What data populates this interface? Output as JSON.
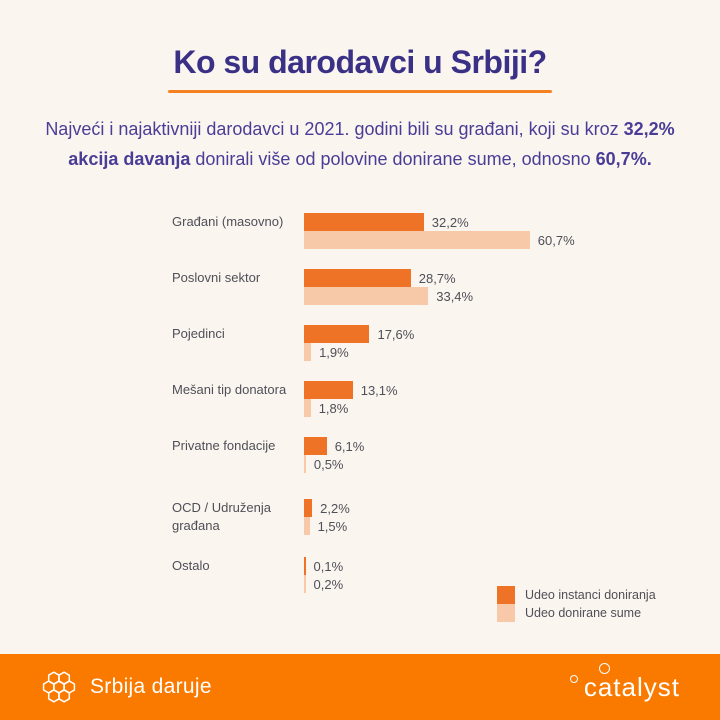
{
  "page": {
    "background": "#FBF5F0"
  },
  "header": {
    "title": "Ko su darodavci u Srbiji?",
    "underline_color": "#F58220",
    "title_color": "#3A3186"
  },
  "intro": {
    "part1": "Najveći i najaktivniji darodavci u 2021. godini bili su građani, koji su kroz ",
    "bold1": "32,2% akcija davanja",
    "part2": " donirali više od polovine donirane sume, odnosno ",
    "bold2": "60,7%."
  },
  "chart_data": {
    "type": "bar",
    "orientation": "horizontal",
    "title": "Ko su darodavci u Srbiji?",
    "xlabel": "",
    "ylabel": "",
    "xlim": [
      0,
      65
    ],
    "grid": false,
    "legend_position": "bottom-right",
    "value_suffix": "%",
    "categories": [
      "Građani (masovno)",
      "Poslovni sektor",
      "Pojedinci",
      "Mešani tip donatora",
      "Privatne fondacije",
      "OCD / Udruženja građana",
      "Ostalo"
    ],
    "series": [
      {
        "name": "Udeo instanci doniranja",
        "color": "#EE7327",
        "values": [
          32.2,
          28.7,
          17.6,
          13.1,
          6.1,
          2.2,
          0.1
        ],
        "labels": [
          "32,2%",
          "28,7%",
          "17,6%",
          "13,1%",
          "6,1%",
          "2,2%",
          "0,1%"
        ]
      },
      {
        "name": "Udeo donirane sume",
        "color": "#F7C9A8",
        "values": [
          60.7,
          33.4,
          1.9,
          1.8,
          0.5,
          1.5,
          0.2
        ],
        "labels": [
          "60,7%",
          "33,4%",
          "1,9%",
          "1,8%",
          "0,5%",
          "1,5%",
          "0,2%"
        ]
      }
    ]
  },
  "footer": {
    "background": "#FA7A00",
    "left_logo_text": "Srbija daruje",
    "right_logo_text": "catalyst"
  }
}
